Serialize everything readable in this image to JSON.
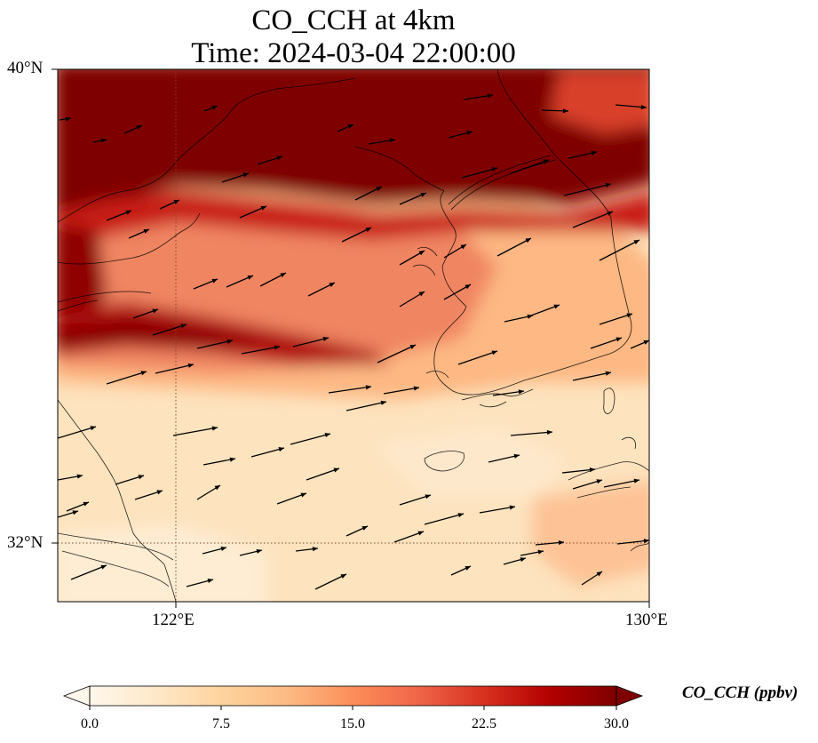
{
  "title": {
    "line1": "CO_CCH at 4km",
    "line2": "Time: 2024-03-04 22:00:00"
  },
  "map": {
    "lat_range": [
      31.0,
      40.0
    ],
    "lon_range": [
      120.0,
      130.0
    ],
    "lat_ticks": [
      {
        "value": 40,
        "label": "40°N"
      },
      {
        "value": 32,
        "label": "32°N"
      }
    ],
    "lon_ticks": [
      {
        "value": 122,
        "label": "122°E"
      },
      {
        "value": 130,
        "label": "130°E"
      }
    ],
    "gridlines": {
      "lat": 32,
      "lon": 122,
      "style": "dotted"
    },
    "field": "CO_CCH",
    "high_band_description": "dark red band of high concentration across the north",
    "wind_vectors_direction": "westerly to southwesterly"
  },
  "colorbar": {
    "label": "CO_CCH (ppbv)",
    "min": 0.0,
    "max": 30.0,
    "ticks": [
      "0.0",
      "7.5",
      "15.0",
      "22.5",
      "30.0"
    ],
    "colormap": "OrRd",
    "colors": [
      "#fff7ec",
      "#fee8c8",
      "#fdd49e",
      "#fdbb84",
      "#fc8d59",
      "#ef6548",
      "#d7301f",
      "#b30000",
      "#7f0000"
    ],
    "extend": "both"
  }
}
